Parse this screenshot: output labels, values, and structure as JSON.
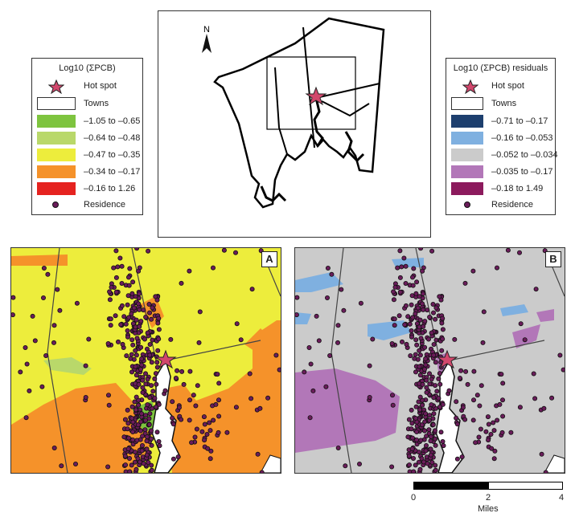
{
  "legend_a": {
    "title": "Log10 (ΣPCB)",
    "hotspot_label": "Hot spot",
    "towns_label": "Towns",
    "classes": [
      {
        "label": "–1.05 to –0.65",
        "color": "#7ec43f"
      },
      {
        "label": "–0.64 to –0.48",
        "color": "#b9d86a"
      },
      {
        "label": "–0.47 to –0.35",
        "color": "#eded3c"
      },
      {
        "label": "–0.34 to –0.17",
        "color": "#f5922a"
      },
      {
        "label": "–0.16 to 1.26",
        "color": "#e52320"
      }
    ],
    "residence_label": "Residence"
  },
  "legend_b": {
    "title": "Log10 (ΣPCB) residuals",
    "hotspot_label": "Hot spot",
    "towns_label": "Towns",
    "classes": [
      {
        "label": "–0.71 to –0.17",
        "color": "#1d3f6e"
      },
      {
        "label": "–0.16 to –0.053",
        "color": "#7fb0e0"
      },
      {
        "label": "–0.052 to –0.034",
        "color": "#cbcbcb"
      },
      {
        "label": "–0.035 to –0.17",
        "color": "#b277b8"
      },
      {
        "label": "–0.18 to 1.49",
        "color": "#8c1a5d"
      }
    ],
    "residence_label": "Residence"
  },
  "overview": {
    "north_label": "N"
  },
  "panel_a": {
    "letter": "A"
  },
  "panel_b": {
    "letter": "B"
  },
  "scalebar": {
    "ticks": [
      "0",
      "2",
      "4"
    ],
    "unit": "Miles"
  },
  "colors": {
    "hotspot": "#d2476c",
    "residence": "#6a1c5a",
    "residence_stroke": "#111111"
  }
}
